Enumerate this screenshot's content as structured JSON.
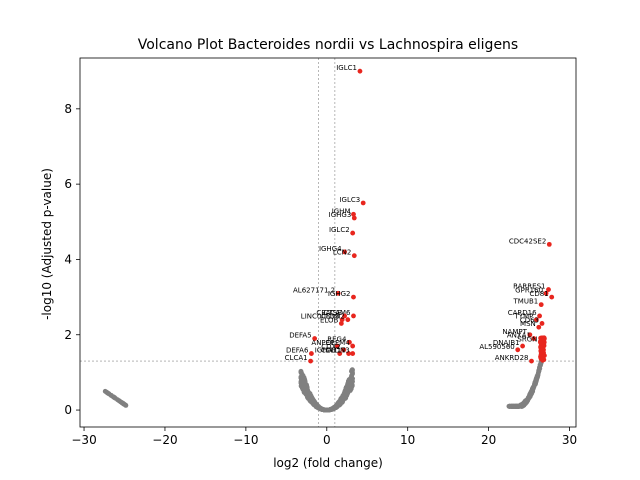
{
  "chart_data": {
    "type": "scatter",
    "title": "Volcano Plot Bacteroides nordii vs Lachnospira eligens",
    "xlabel": "log2 (fold change)",
    "ylabel": "-log10 (Adjusted p-value)",
    "xlim": [
      -30.5,
      30.8
    ],
    "ylim": [
      -0.45,
      9.35
    ],
    "xticks": [
      -30,
      -20,
      -10,
      0,
      10,
      20,
      30
    ],
    "yticks": [
      0,
      2,
      4,
      6,
      8
    ],
    "thresholds": {
      "fc_lines": [
        -1,
        1
      ],
      "p_line": 1.3
    },
    "grid": false,
    "legend": "none",
    "colors": {
      "significant": "#e8261e",
      "nonsignificant": "#808080",
      "threshold": "#888888"
    },
    "significant_points": [
      {
        "label": "IGLC1",
        "x": 4.1,
        "y": 9.0
      },
      {
        "label": "IGLC3",
        "x": 4.5,
        "y": 5.5
      },
      {
        "label": "IGHM",
        "x": 3.3,
        "y": 5.2
      },
      {
        "label": "IGHG3",
        "x": 3.4,
        "y": 5.1
      },
      {
        "label": "IGLC2",
        "x": 3.2,
        "y": 4.7
      },
      {
        "label": "IGHG4",
        "x": 2.2,
        "y": 4.2
      },
      {
        "label": "LCN2",
        "x": 3.4,
        "y": 4.1
      },
      {
        "label": "AL627171.2",
        "x": 1.4,
        "y": 3.1
      },
      {
        "label": "IGHG2",
        "x": 3.3,
        "y": 3.0
      },
      {
        "label": "CEACAM6",
        "x": 3.3,
        "y": 2.5
      },
      {
        "label": "LINC00839",
        "x": 1.9,
        "y": 2.4
      },
      {
        "label": "CTSE",
        "x": 2.2,
        "y": 2.5
      },
      {
        "label": "CLDN2",
        "x": 2.6,
        "y": 2.4
      },
      {
        "label": "ELOB",
        "x": 1.8,
        "y": 2.3
      },
      {
        "label": "DEFA5",
        "x": -1.5,
        "y": 1.9
      },
      {
        "label": "DEFA6",
        "x": -1.9,
        "y": 1.5
      },
      {
        "label": "CLCA1",
        "x": -2.0,
        "y": 1.3
      },
      {
        "label": "REG4",
        "x": 2.8,
        "y": 1.8
      },
      {
        "label": "ANPEP",
        "x": 1.3,
        "y": 1.7
      },
      {
        "label": "CDX2",
        "x": 2.1,
        "y": 1.6
      },
      {
        "label": "OLFM4",
        "x": 3.2,
        "y": 1.7
      },
      {
        "label": "IGHA1",
        "x": 1.6,
        "y": 1.5
      },
      {
        "label": "CDH17",
        "x": 2.7,
        "y": 1.5
      },
      {
        "label": "CLDN3",
        "x": 3.2,
        "y": 1.5
      },
      {
        "label": "CDC42SE2",
        "x": 27.5,
        "y": 4.4
      },
      {
        "label": "RARRES1",
        "x": 27.4,
        "y": 3.2
      },
      {
        "label": "GPR160",
        "x": 27.1,
        "y": 3.1
      },
      {
        "label": "CD81",
        "x": 27.8,
        "y": 3.0
      },
      {
        "label": "TMUB1",
        "x": 26.5,
        "y": 2.8
      },
      {
        "label": "CARD16",
        "x": 26.3,
        "y": 2.5
      },
      {
        "label": "TYMP",
        "x": 25.9,
        "y": 2.4
      },
      {
        "label": "CD63",
        "x": 26.6,
        "y": 2.3
      },
      {
        "label": "MSN",
        "x": 26.2,
        "y": 2.2
      },
      {
        "label": "NAMPT",
        "x": 25.1,
        "y": 2.0
      },
      {
        "label": "ANXA1",
        "x": 25.6,
        "y": 1.9
      },
      {
        "label": "SRGN",
        "x": 26.4,
        "y": 1.8
      },
      {
        "label": "DNAJB1",
        "x": 24.2,
        "y": 1.7
      },
      {
        "label": "AL590560",
        "x": 23.6,
        "y": 1.6
      },
      {
        "label": "ANKRD28",
        "x": 25.3,
        "y": 1.3
      }
    ]
  }
}
